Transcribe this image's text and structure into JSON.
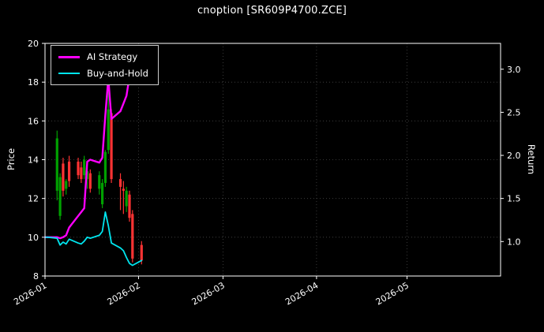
{
  "colors": {
    "background": "#000000",
    "text": "#ffffff",
    "grid": "#464646",
    "frame": "#ffffff",
    "legend_border": "#cccccc"
  },
  "chart_data": {
    "type": "candlestick+line",
    "title": "cnoption [SR609P4700.ZCE]",
    "xlabel": "",
    "ylabel": "Price",
    "y2label": "Return",
    "ylim": [
      8,
      20
    ],
    "y2lim": [
      0.6,
      3.3
    ],
    "yticks": [
      8,
      10,
      12,
      14,
      16,
      18,
      20
    ],
    "y2ticks": [
      1.0,
      1.5,
      2.0,
      2.5,
      3.0
    ],
    "xlim": [
      "2026-01-01",
      "2026-06-01"
    ],
    "xtick_labels": [
      "2026-01",
      "2026-02",
      "2026-03",
      "2026-04",
      "2026-05"
    ],
    "grid": true,
    "legend": {
      "position": "upper left",
      "entries": [
        {
          "label": "AI Strategy",
          "color": "#ff00ff"
        },
        {
          "label": "Buy-and-Hold",
          "color": "#00e5ee"
        }
      ]
    },
    "candle_colors": {
      "up": "#00a000",
      "down": "#ff3333"
    },
    "dates": [
      "2026-01-01",
      "2026-01-02",
      "2026-01-05",
      "2026-01-06",
      "2026-01-07",
      "2026-01-08",
      "2026-01-09",
      "2026-01-12",
      "2026-01-13",
      "2026-01-14",
      "2026-01-15",
      "2026-01-16",
      "2026-01-19",
      "2026-01-20",
      "2026-01-21",
      "2026-01-22",
      "2026-01-23",
      "2026-01-26",
      "2026-01-27",
      "2026-01-28",
      "2026-01-29",
      "2026-01-30",
      "2026-02-02"
    ],
    "candles": [
      null,
      null,
      [
        12.4,
        15.5,
        11.9,
        15.1
      ],
      [
        11.1,
        13.3,
        10.9,
        13.1
      ],
      [
        13.8,
        14.1,
        12.1,
        12.4
      ],
      [
        12.5,
        13.0,
        12.2,
        12.9
      ],
      [
        13.9,
        14.2,
        12.6,
        12.9
      ],
      [
        13.9,
        14.1,
        13.0,
        13.2
      ],
      [
        13.6,
        13.9,
        12.8,
        13.0
      ],
      [
        13.2,
        14.2,
        13.0,
        14.0
      ],
      [
        13.0,
        13.6,
        12.5,
        13.4
      ],
      [
        13.3,
        13.5,
        12.3,
        12.5
      ],
      [
        12.5,
        13.4,
        12.2,
        13.2
      ],
      [
        11.7,
        13.0,
        11.5,
        12.8
      ],
      [
        12.8,
        14.5,
        12.6,
        14.4
      ],
      [
        14.5,
        18.2,
        14.3,
        16.6
      ],
      [
        16.4,
        16.6,
        12.8,
        13.0
      ],
      [
        13.0,
        13.3,
        11.4,
        12.6
      ],
      [
        12.5,
        12.9,
        11.2,
        12.4
      ],
      [
        11.6,
        12.6,
        11.3,
        12.4
      ],
      [
        12.2,
        12.4,
        10.8,
        11.0
      ],
      [
        11.2,
        11.4,
        8.7,
        8.9
      ],
      [
        9.6,
        9.8,
        8.6,
        8.8
      ]
    ],
    "series": [
      {
        "name": "AI Strategy",
        "color": "#ff00ff",
        "values": [
          10.0,
          10.0,
          10.0,
          9.95,
          10.0,
          10.1,
          10.5,
          11.1,
          11.3,
          11.5,
          13.9,
          14.0,
          13.85,
          14.1,
          16.3,
          18.2,
          16.1,
          16.5,
          16.9,
          17.3,
          18.3,
          18.35,
          18.4
        ]
      },
      {
        "name": "Buy-and-Hold",
        "color": "#00e5ee",
        "values": [
          10.0,
          10.0,
          9.95,
          9.6,
          9.75,
          9.65,
          9.9,
          9.7,
          9.65,
          9.8,
          10.0,
          9.95,
          10.1,
          10.3,
          11.3,
          10.6,
          9.7,
          9.45,
          9.3,
          8.95,
          8.65,
          8.55,
          8.8
        ]
      }
    ]
  }
}
